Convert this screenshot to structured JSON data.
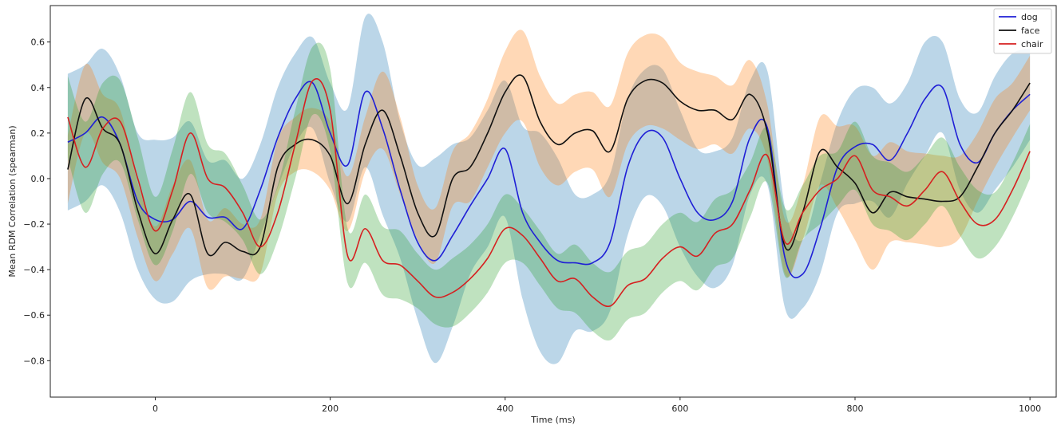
{
  "chart_data": {
    "type": "line",
    "xlabel": "Time (ms)",
    "ylabel": "Mean RDM Correlation (spearman)",
    "xlim": [
      -120,
      1030
    ],
    "ylim": [
      -0.96,
      0.76
    ],
    "xticks": [
      0,
      200,
      400,
      600,
      800,
      1000
    ],
    "yticks": [
      -0.8,
      -0.6,
      -0.4,
      -0.2,
      0.0,
      0.2,
      0.4,
      0.6
    ],
    "xtick_labels": [
      "0",
      "200",
      "400",
      "600",
      "800",
      "1000"
    ],
    "ytick_labels": [
      "−0.8",
      "−0.6",
      "−0.4",
      "−0.2",
      "0.0",
      "0.2",
      "0.4",
      "0.6"
    ],
    "legend_position": "top-right",
    "grid": false,
    "x": [
      -100,
      -80,
      -60,
      -40,
      -20,
      0,
      20,
      40,
      60,
      80,
      100,
      120,
      140,
      160,
      180,
      200,
      220,
      240,
      260,
      280,
      300,
      320,
      340,
      360,
      380,
      400,
      420,
      440,
      460,
      480,
      500,
      520,
      540,
      560,
      580,
      600,
      620,
      640,
      660,
      680,
      700,
      720,
      740,
      760,
      780,
      800,
      820,
      840,
      860,
      880,
      900,
      920,
      940,
      960,
      980,
      1000
    ],
    "series": [
      {
        "name": "dog",
        "color": "#1f1fd6",
        "band_color": "#1f77b4",
        "values": [
          0.16,
          0.2,
          0.27,
          0.15,
          -0.1,
          -0.18,
          -0.18,
          -0.1,
          -0.17,
          -0.17,
          -0.22,
          -0.05,
          0.18,
          0.35,
          0.42,
          0.2,
          0.06,
          0.38,
          0.22,
          -0.05,
          -0.28,
          -0.36,
          -0.25,
          -0.12,
          0.0,
          0.13,
          -0.15,
          -0.28,
          -0.36,
          -0.37,
          -0.37,
          -0.28,
          0.05,
          0.2,
          0.18,
          0.0,
          -0.15,
          -0.18,
          -0.1,
          0.18,
          0.22,
          -0.35,
          -0.42,
          -0.22,
          0.05,
          0.14,
          0.15,
          0.08,
          0.2,
          0.35,
          0.4,
          0.15,
          0.07,
          0.2,
          0.3,
          0.37
        ],
        "band": [
          0.3,
          0.3,
          0.3,
          0.3,
          0.3,
          0.35,
          0.36,
          0.35,
          0.25,
          0.25,
          0.22,
          0.2,
          0.22,
          0.2,
          0.2,
          0.22,
          0.25,
          0.33,
          0.38,
          0.3,
          0.34,
          0.45,
          0.4,
          0.3,
          0.3,
          0.3,
          0.38,
          0.48,
          0.45,
          0.3,
          0.3,
          0.3,
          0.3,
          0.28,
          0.3,
          0.3,
          0.28,
          0.3,
          0.28,
          0.25,
          0.25,
          0.22,
          0.15,
          0.2,
          0.2,
          0.25,
          0.25,
          0.25,
          0.22,
          0.25,
          0.2,
          0.2,
          0.22,
          0.25,
          0.25,
          0.2
        ]
      },
      {
        "name": "face",
        "color": "#111111",
        "band_color": "#ff7f0e",
        "values": [
          0.04,
          0.35,
          0.22,
          0.15,
          -0.14,
          -0.33,
          -0.18,
          -0.07,
          -0.33,
          -0.28,
          -0.32,
          -0.3,
          0.05,
          0.15,
          0.17,
          0.1,
          -0.11,
          0.15,
          0.3,
          0.1,
          -0.15,
          -0.25,
          0.0,
          0.05,
          0.2,
          0.38,
          0.45,
          0.25,
          0.15,
          0.2,
          0.21,
          0.12,
          0.35,
          0.43,
          0.42,
          0.34,
          0.3,
          0.3,
          0.26,
          0.37,
          0.2,
          -0.3,
          -0.15,
          0.12,
          0.05,
          -0.02,
          -0.15,
          -0.06,
          -0.08,
          -0.09,
          -0.1,
          -0.08,
          0.05,
          0.2,
          0.3,
          0.42
        ],
        "band": [
          0.15,
          0.15,
          0.15,
          0.15,
          0.12,
          0.12,
          0.15,
          0.15,
          0.15,
          0.15,
          0.12,
          0.12,
          0.12,
          0.12,
          0.14,
          0.15,
          0.12,
          0.12,
          0.17,
          0.17,
          0.12,
          0.12,
          0.12,
          0.15,
          0.15,
          0.18,
          0.2,
          0.2,
          0.18,
          0.17,
          0.17,
          0.2,
          0.2,
          0.2,
          0.2,
          0.17,
          0.17,
          0.15,
          0.15,
          0.15,
          0.12,
          0.12,
          0.12,
          0.15,
          0.18,
          0.25,
          0.25,
          0.22,
          0.2,
          0.2,
          0.2,
          0.18,
          0.15,
          0.15,
          0.12,
          0.12
        ]
      },
      {
        "name": "chair",
        "color": "#d62020",
        "band_color": "#2ca02c",
        "values": [
          0.27,
          0.05,
          0.22,
          0.25,
          0.0,
          -0.23,
          -0.05,
          0.2,
          0.0,
          -0.04,
          -0.15,
          -0.3,
          -0.15,
          0.15,
          0.43,
          0.3,
          -0.34,
          -0.22,
          -0.36,
          -0.38,
          -0.45,
          -0.52,
          -0.5,
          -0.44,
          -0.35,
          -0.22,
          -0.25,
          -0.35,
          -0.45,
          -0.44,
          -0.52,
          -0.56,
          -0.47,
          -0.44,
          -0.35,
          -0.3,
          -0.34,
          -0.24,
          -0.2,
          -0.05,
          0.1,
          -0.28,
          -0.15,
          -0.05,
          0.0,
          0.1,
          -0.05,
          -0.08,
          -0.12,
          -0.05,
          0.03,
          -0.1,
          -0.2,
          -0.18,
          -0.05,
          0.12
        ],
        "band": [
          0.18,
          0.2,
          0.2,
          0.18,
          0.18,
          0.15,
          0.18,
          0.18,
          0.15,
          0.15,
          0.12,
          0.12,
          0.12,
          0.15,
          0.15,
          0.18,
          0.12,
          0.15,
          0.15,
          0.15,
          0.12,
          0.12,
          0.15,
          0.15,
          0.15,
          0.15,
          0.12,
          0.12,
          0.12,
          0.15,
          0.15,
          0.15,
          0.15,
          0.15,
          0.15,
          0.15,
          0.15,
          0.15,
          0.15,
          0.12,
          0.12,
          0.15,
          0.12,
          0.15,
          0.12,
          0.15,
          0.15,
          0.15,
          0.15,
          0.15,
          0.15,
          0.15,
          0.15,
          0.12,
          0.12,
          0.12
        ]
      }
    ]
  }
}
